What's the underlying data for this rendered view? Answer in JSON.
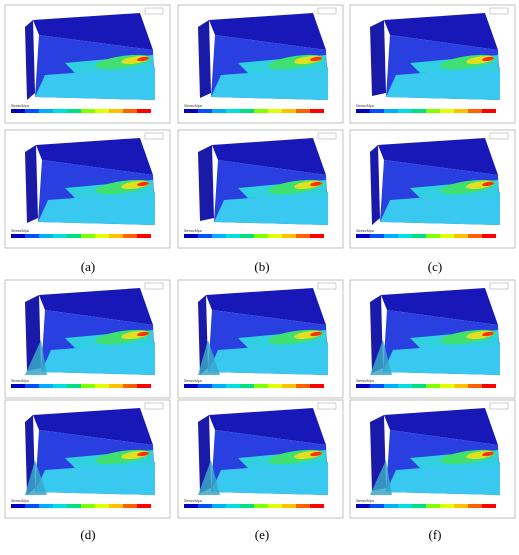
{
  "legend_title": "Stress/Mpa",
  "labels": [
    "(a)",
    "(b)",
    "(c)",
    "(d)",
    "(e)",
    "(f)"
  ]
}
